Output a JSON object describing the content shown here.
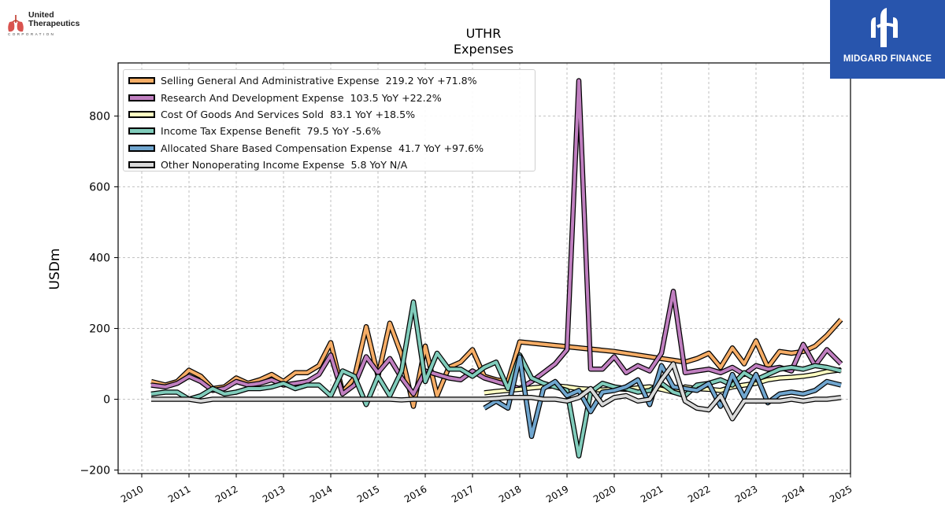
{
  "header": {
    "ticker": "UTHR",
    "subtitle": "Expenses"
  },
  "company_logo": {
    "line1": "United",
    "line2": "Therapeutics",
    "sub": "CORPORATION",
    "color": "#c0392b"
  },
  "brand": {
    "name": "MIDGARD FINANCE",
    "color": "#2855ad"
  },
  "legend_entries": [
    {
      "label": "Selling General And Administrative Expense",
      "value": "219.2",
      "yoy": "YoY +71.8%",
      "color": "#f6ad66"
    },
    {
      "label": "Research And Development Expense",
      "value": "103.5",
      "yoy": "YoY +22.2%",
      "color": "#c07fc0"
    },
    {
      "label": "Cost Of Goods And Services Sold",
      "value": "83.1",
      "yoy": "YoY +18.5%",
      "color": "#ffffc2"
    },
    {
      "label": "Income Tax Expense Benefit",
      "value": "79.5",
      "yoy": "YoY -5.6%",
      "color": "#80ccbb"
    },
    {
      "label": "Allocated Share Based Compensation Expense",
      "value": "41.7",
      "yoy": "YoY +97.6%",
      "color": "#70a6cf"
    },
    {
      "label": "Other Nonoperating Income Expense",
      "value": "5.8",
      "yoy": "YoY N/A",
      "color": "#d9d9d9"
    }
  ],
  "chart_data": {
    "type": "line",
    "title": "UTHR",
    "subtitle": "Expenses",
    "xlabel": "",
    "ylabel": "USDm",
    "xlim": [
      2009.5,
      2025.0
    ],
    "ylim": [
      -210,
      950
    ],
    "x_ticks": [
      2010,
      2011,
      2012,
      2013,
      2014,
      2015,
      2016,
      2017,
      2018,
      2019,
      2020,
      2021,
      2022,
      2023,
      2024,
      2025
    ],
    "y_ticks": [
      -200,
      0,
      200,
      400,
      600,
      800
    ],
    "grid": true,
    "legend_position": "top-left",
    "series": [
      {
        "name": "Selling General And Administrative Expense",
        "color": "#f6ad66",
        "x": [
          2010.2,
          2010.5,
          2010.75,
          2011.0,
          2011.25,
          2011.5,
          2011.75,
          2012.0,
          2012.25,
          2012.5,
          2012.75,
          2013.0,
          2013.25,
          2013.5,
          2013.75,
          2014.0,
          2014.25,
          2014.5,
          2014.75,
          2015.0,
          2015.25,
          2015.5,
          2015.75,
          2016.0,
          2016.25,
          2016.5,
          2016.75,
          2017.0,
          2017.25,
          2017.5,
          2017.75,
          2018.0,
          2020.0,
          2021.0,
          2021.25,
          2021.5,
          2021.75,
          2022.0,
          2022.25,
          2022.5,
          2022.75,
          2023.0,
          2023.25,
          2023.5,
          2023.75,
          2024.0,
          2024.25,
          2024.5,
          2024.8
        ],
        "y": [
          50,
          40,
          50,
          82,
          65,
          30,
          35,
          60,
          45,
          55,
          70,
          50,
          75,
          75,
          95,
          160,
          20,
          60,
          205,
          65,
          215,
          125,
          -20,
          150,
          10,
          90,
          105,
          140,
          65,
          55,
          50,
          162,
          135,
          115,
          110,
          105,
          115,
          130,
          90,
          145,
          100,
          165,
          90,
          135,
          130,
          135,
          150,
          180,
          225
        ]
      },
      {
        "name": "Research And Development Expense",
        "color": "#c07fc0",
        "x": [
          2010.2,
          2010.5,
          2010.75,
          2011.0,
          2011.25,
          2011.5,
          2011.75,
          2012.0,
          2012.25,
          2012.5,
          2012.75,
          2013.0,
          2013.25,
          2013.5,
          2013.75,
          2014.0,
          2014.25,
          2014.5,
          2014.75,
          2015.0,
          2015.25,
          2015.5,
          2015.75,
          2016.0,
          2016.25,
          2016.5,
          2016.75,
          2017.0,
          2017.25,
          2017.5,
          2017.75,
          2018.0,
          2018.25,
          2018.5,
          2018.75,
          2019.0,
          2019.25,
          2019.5,
          2019.75,
          2020.0,
          2020.25,
          2020.5,
          2020.75,
          2021.0,
          2021.25,
          2021.5,
          2021.75,
          2022.0,
          2022.25,
          2022.5,
          2022.75,
          2023.0,
          2023.25,
          2023.5,
          2023.75,
          2024.0,
          2024.25,
          2024.5,
          2024.8
        ],
        "y": [
          40,
          35,
          45,
          65,
          50,
          25,
          30,
          50,
          40,
          45,
          55,
          40,
          45,
          50,
          70,
          125,
          15,
          40,
          120,
          75,
          115,
          60,
          15,
          80,
          70,
          60,
          55,
          80,
          60,
          50,
          40,
          30,
          50,
          75,
          100,
          140,
          900,
          85,
          85,
          120,
          75,
          95,
          80,
          130,
          305,
          75,
          80,
          85,
          75,
          90,
          70,
          95,
          85,
          90,
          80,
          155,
          95,
          140,
          100
        ]
      },
      {
        "name": "Cost Of Goods And Services Sold",
        "color": "#ffffc2",
        "x": [
          2017.25,
          2017.5,
          2017.75,
          2018.0,
          2018.25,
          2018.5,
          2018.75,
          2019.0,
          2019.25,
          2019.5,
          2019.75,
          2020.0,
          2020.25,
          2020.5,
          2020.75,
          2021.0,
          2021.25,
          2021.5,
          2021.75,
          2022.0,
          2022.25,
          2022.5,
          2022.75,
          2023.0,
          2023.25,
          2023.5,
          2023.75,
          2024.0,
          2024.25,
          2024.5,
          2024.8
        ],
        "y": [
          18,
          22,
          25,
          28,
          32,
          35,
          38,
          35,
          30,
          28,
          26,
          30,
          28,
          32,
          35,
          28,
          20,
          35,
          30,
          28,
          25,
          35,
          40,
          45,
          55,
          60,
          62,
          65,
          70,
          78,
          83
        ]
      },
      {
        "name": "Income Tax Expense Benefit",
        "color": "#80ccbb",
        "x": [
          2010.2,
          2010.5,
          2010.75,
          2011.0,
          2011.25,
          2011.5,
          2011.75,
          2012.0,
          2012.25,
          2012.5,
          2012.75,
          2013.0,
          2013.25,
          2013.5,
          2013.75,
          2014.0,
          2014.25,
          2014.5,
          2014.75,
          2015.0,
          2015.25,
          2015.5,
          2015.75,
          2016.0,
          2016.25,
          2016.5,
          2016.75,
          2017.0,
          2017.25,
          2017.5,
          2017.75,
          2018.0,
          2018.25,
          2018.5,
          2018.75,
          2019.0,
          2019.25,
          2019.5,
          2019.75,
          2020.0,
          2020.25,
          2020.5,
          2020.75,
          2021.0,
          2021.25,
          2021.5,
          2021.75,
          2022.0,
          2022.25,
          2022.5,
          2022.75,
          2023.0,
          2023.25,
          2023.5,
          2023.75,
          2024.0,
          2024.25,
          2024.5,
          2024.8
        ],
        "y": [
          15,
          20,
          20,
          0,
          10,
          30,
          15,
          20,
          30,
          30,
          35,
          45,
          30,
          40,
          40,
          10,
          80,
          65,
          -15,
          65,
          10,
          80,
          275,
          50,
          130,
          85,
          85,
          65,
          90,
          105,
          30,
          125,
          60,
          45,
          35,
          25,
          -160,
          20,
          45,
          35,
          30,
          20,
          25,
          45,
          20,
          10,
          40,
          45,
          55,
          40,
          75,
          55,
          70,
          85,
          90,
          85,
          95,
          90,
          80
        ]
      },
      {
        "name": "Allocated Share Based Compensation Expense",
        "color": "#70a6cf",
        "x": [
          2017.25,
          2017.5,
          2017.75,
          2018.0,
          2018.25,
          2018.5,
          2018.75,
          2019.0,
          2019.25,
          2019.5,
          2019.75,
          2020.0,
          2020.25,
          2020.5,
          2020.75,
          2021.0,
          2021.25,
          2021.5,
          2021.75,
          2022.0,
          2022.25,
          2022.5,
          2022.75,
          2023.0,
          2023.25,
          2023.5,
          2023.75,
          2024.0,
          2024.25,
          2024.5,
          2024.8
        ],
        "y": [
          -25,
          -5,
          -25,
          120,
          -105,
          30,
          50,
          10,
          25,
          -35,
          20,
          25,
          35,
          55,
          -15,
          95,
          35,
          30,
          25,
          45,
          -20,
          70,
          5,
          70,
          -10,
          15,
          20,
          15,
          25,
          50,
          40
        ]
      },
      {
        "name": "Other Nonoperating Income Expense",
        "color": "#d9d9d9",
        "x": [
          2010.2,
          2010.5,
          2010.75,
          2011.0,
          2011.25,
          2011.5,
          2011.75,
          2012.0,
          2012.25,
          2012.5,
          2012.75,
          2013.0,
          2013.25,
          2013.5,
          2013.75,
          2014.0,
          2014.25,
          2014.5,
          2014.75,
          2015.0,
          2015.25,
          2015.5,
          2015.75,
          2016.0,
          2016.25,
          2016.5,
          2016.75,
          2017.0,
          2017.25,
          2017.5,
          2017.75,
          2018.0,
          2018.25,
          2018.5,
          2018.75,
          2019.0,
          2019.25,
          2019.5,
          2019.75,
          2020.0,
          2020.25,
          2020.5,
          2020.75,
          2021.0,
          2021.25,
          2021.5,
          2021.75,
          2022.0,
          2022.25,
          2022.5,
          2022.75,
          2023.0,
          2023.25,
          2023.5,
          2023.75,
          2024.0,
          2024.25,
          2024.5,
          2024.8
        ],
        "y": [
          0,
          0,
          0,
          0,
          -5,
          0,
          0,
          0,
          0,
          0,
          0,
          0,
          0,
          0,
          0,
          0,
          0,
          0,
          0,
          0,
          0,
          -2,
          0,
          0,
          0,
          0,
          0,
          0,
          0,
          2,
          5,
          5,
          5,
          0,
          0,
          -5,
          5,
          30,
          -15,
          5,
          10,
          -5,
          0,
          55,
          100,
          -5,
          -25,
          -30,
          10,
          -55,
          -5,
          -5,
          -5,
          -5,
          0,
          -5,
          0,
          0,
          5
        ]
      }
    ]
  }
}
